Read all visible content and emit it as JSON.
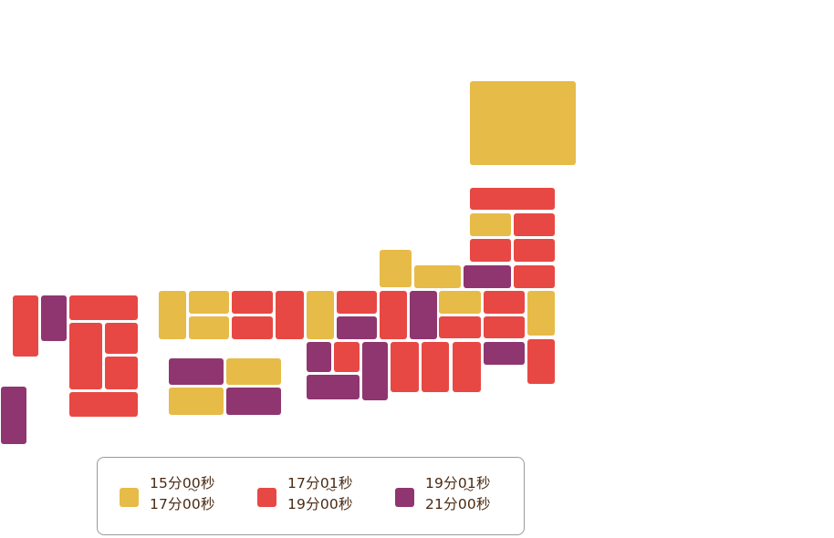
{
  "colors": {
    "yellow": "#e7bb48",
    "red": "#e84844",
    "purple": "#8f3670",
    "legend_text": "#4a2a12",
    "legend_border": "#9a9a9a"
  },
  "legend": {
    "items": [
      {
        "from": "15分00秒",
        "tilde": "〜",
        "to": "17分00秒",
        "color": "yellow"
      },
      {
        "from": "17分01秒",
        "tilde": "〜",
        "to": "19分00秒",
        "color": "red"
      },
      {
        "from": "19分01秒",
        "tilde": "〜",
        "to": "21分00秒",
        "color": "purple"
      }
    ]
  }
}
